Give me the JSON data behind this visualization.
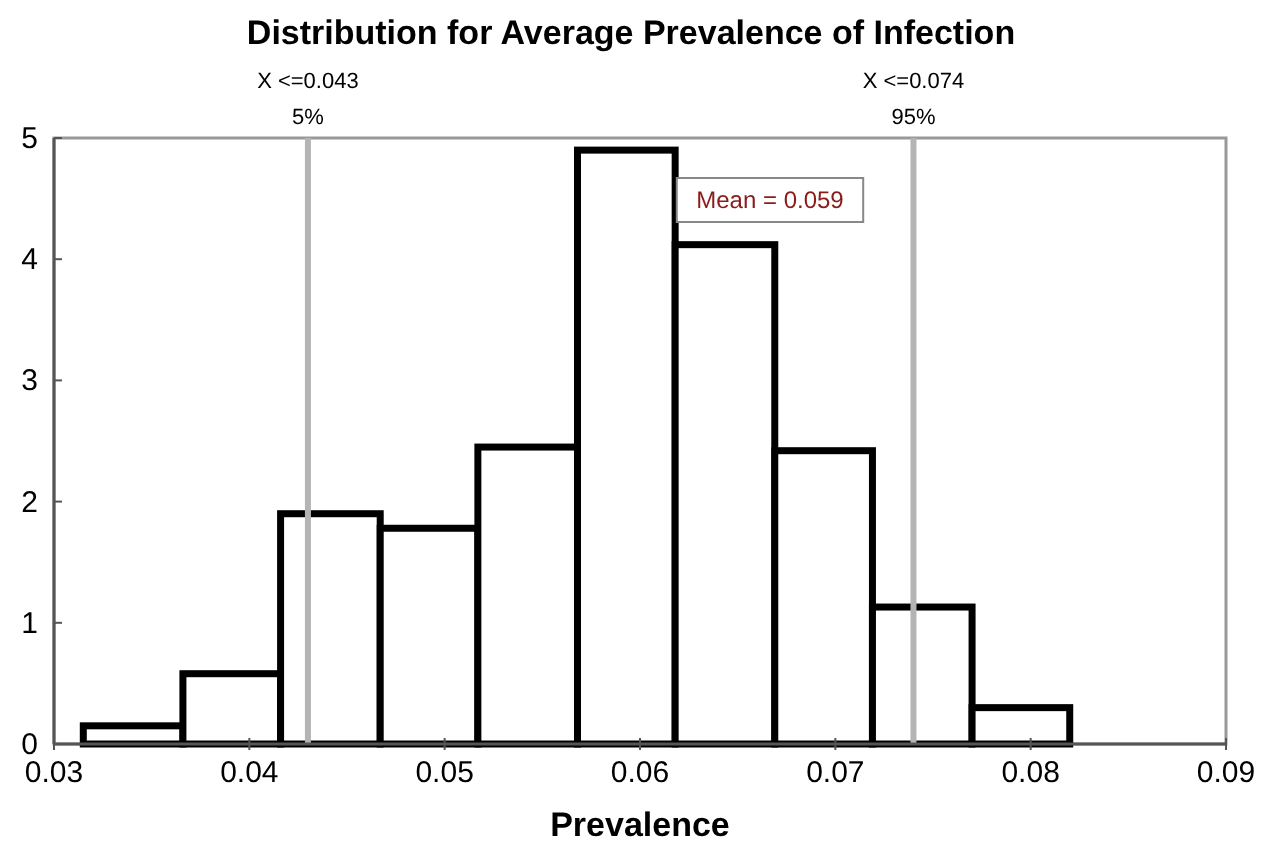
{
  "chart_data": {
    "type": "histogram",
    "title": "Distribution for Average Prevalence of Infection",
    "xlabel": "Prevalence",
    "bins": [
      0.0315,
      0.0366,
      0.0416,
      0.0467,
      0.0517,
      0.0568,
      0.0618,
      0.0669,
      0.0719,
      0.077,
      0.082
    ],
    "values": [
      0.15,
      0.58,
      1.9,
      1.78,
      2.45,
      4.9,
      4.12,
      2.42,
      1.13,
      0.3
    ],
    "color": "#000000",
    "xlim": [
      0.03,
      0.09
    ],
    "xticks": [
      0.03,
      0.04,
      0.05,
      0.06,
      0.07,
      0.08,
      0.09
    ],
    "ylim": [
      0,
      5
    ],
    "yticks": [
      0,
      1,
      2,
      3,
      4,
      5
    ],
    "ref_lines": [
      {
        "axis": "x",
        "value": 0.043,
        "label": "X <=0.043\n5%",
        "color": "#b4b4b4"
      },
      {
        "axis": "x",
        "value": 0.074,
        "label": "X <=0.074\n95%",
        "color": "#b4b4b4"
      }
    ],
    "annotations": [
      "Mean = 0.059"
    ],
    "grid": false
  }
}
